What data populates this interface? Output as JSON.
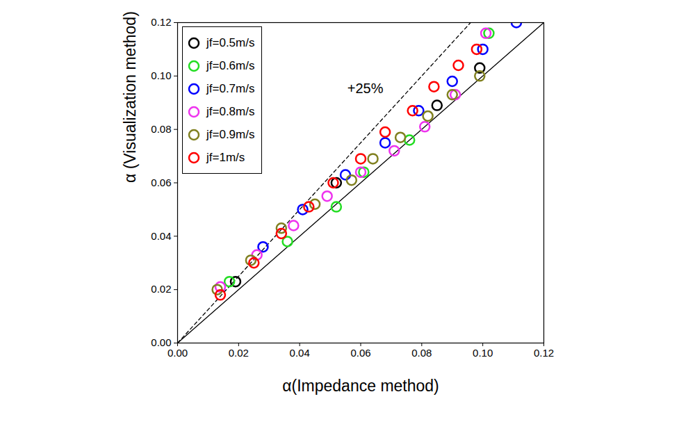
{
  "chart_data": {
    "type": "scatter",
    "x_label": "α(Impedance method)",
    "y_label": "α (Visualization method)",
    "xlim": [
      0,
      0.12
    ],
    "ylim": [
      0,
      0.12
    ],
    "xticks": [
      {
        "value": 0,
        "label": "0.00"
      },
      {
        "value": 0.02,
        "label": "0.02"
      },
      {
        "value": 0.04,
        "label": "0.04"
      },
      {
        "value": 0.06,
        "label": "0.06"
      },
      {
        "value": 0.08,
        "label": "0.08"
      },
      {
        "value": 0.1,
        "label": "0.10"
      },
      {
        "value": 0.12,
        "label": "0.12"
      }
    ],
    "yticks": [
      {
        "value": 0,
        "label": "0.00"
      },
      {
        "value": 0.02,
        "label": "0.02"
      },
      {
        "value": 0.04,
        "label": "0.04"
      },
      {
        "value": 0.06,
        "label": "0.06"
      },
      {
        "value": 0.08,
        "label": "0.08"
      },
      {
        "value": 0.1,
        "label": "0.10"
      },
      {
        "value": 0.12,
        "label": "0.12"
      }
    ],
    "legend": "top-left",
    "marker": "circle_open",
    "reference_lines": [
      {
        "slope": 1,
        "line_style": "solid"
      },
      {
        "slope": 1.25,
        "line_style": "dashed"
      }
    ],
    "annotations": [
      {
        "text": "+25%",
        "x": 0.0615,
        "y": 0.0953
      }
    ],
    "series": [
      {
        "name": "jf=0.5m/s",
        "color": "#000000",
        "x": [
          0.019,
          0.052,
          0.085,
          0.099
        ],
        "values": [
          0.023,
          0.06,
          0.089,
          0.103
        ]
      },
      {
        "name": "jf=0.6m/s",
        "color": "#22dd22",
        "x": [
          0.017,
          0.036,
          0.052,
          0.061,
          0.076,
          0.102
        ],
        "values": [
          0.023,
          0.038,
          0.051,
          0.064,
          0.076,
          0.116
        ]
      },
      {
        "name": "jf=0.7m/s",
        "color": "#0000ff",
        "x": [
          0.028,
          0.041,
          0.055,
          0.068,
          0.079,
          0.09,
          0.1,
          0.111
        ],
        "values": [
          0.036,
          0.05,
          0.063,
          0.075,
          0.087,
          0.098,
          0.11,
          0.12
        ]
      },
      {
        "name": "jf=0.8m/s",
        "color": "#ee33ee",
        "x": [
          0.014,
          0.026,
          0.038,
          0.049,
          0.06,
          0.071,
          0.081,
          0.091,
          0.101
        ],
        "values": [
          0.021,
          0.033,
          0.044,
          0.055,
          0.064,
          0.072,
          0.081,
          0.093,
          0.116
        ]
      },
      {
        "name": "jf=0.9m/s",
        "color": "#808020",
        "x": [
          0.013,
          0.024,
          0.034,
          0.045,
          0.057,
          0.064,
          0.073,
          0.082,
          0.09,
          0.099
        ],
        "values": [
          0.02,
          0.031,
          0.043,
          0.052,
          0.061,
          0.069,
          0.077,
          0.085,
          0.093,
          0.1
        ]
      },
      {
        "name": "jf=1m/s",
        "color": "#ff0000",
        "x": [
          0.014,
          0.025,
          0.034,
          0.043,
          0.051,
          0.06,
          0.068,
          0.077,
          0.084,
          0.092,
          0.098
        ],
        "values": [
          0.018,
          0.03,
          0.041,
          0.051,
          0.06,
          0.069,
          0.079,
          0.087,
          0.096,
          0.104,
          0.11
        ]
      }
    ]
  }
}
